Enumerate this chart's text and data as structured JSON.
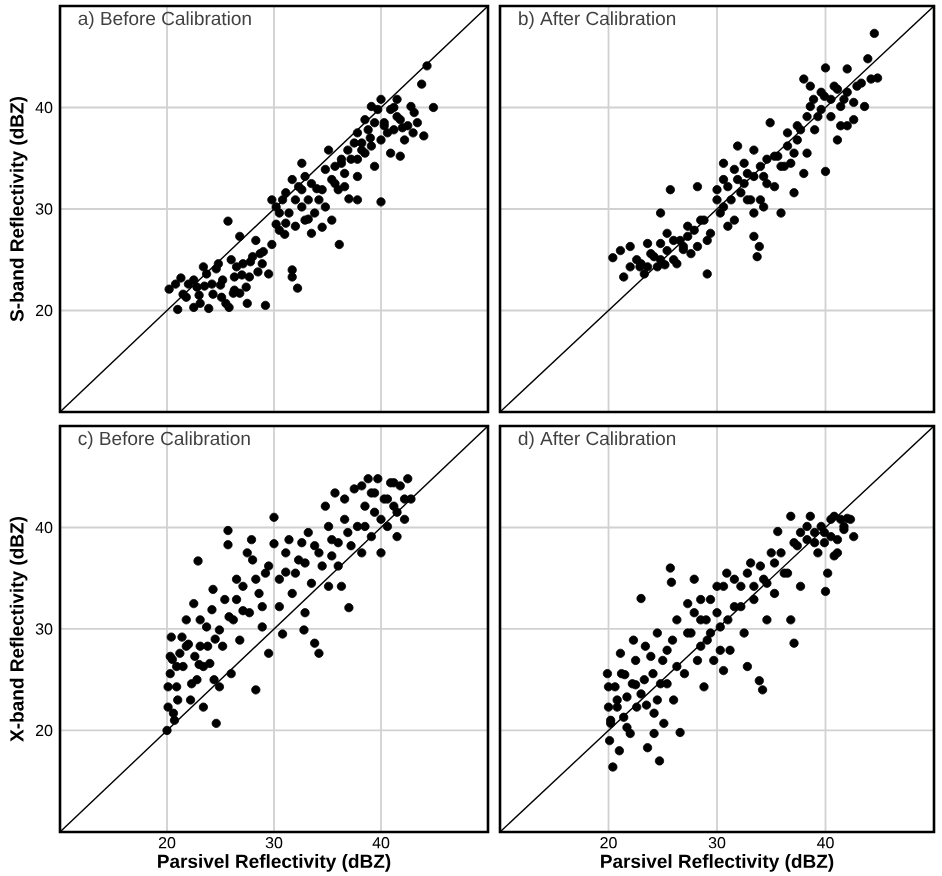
{
  "chart_data": [
    {
      "type": "scatter",
      "title": "a) Before Calibration",
      "ylabel": "S-band Reflectivity (dBZ)",
      "xlim": [
        10,
        50
      ],
      "ylim": [
        10,
        50
      ],
      "xticks": [
        20,
        30,
        40
      ],
      "yticks": [
        20,
        30,
        40
      ],
      "grid": true,
      "tick_labels": "y",
      "marker": "circle",
      "series": [
        {
          "color": "#000000",
          "x": [
            20.2,
            21.0,
            21.3,
            21.5,
            22.0,
            22.5,
            22.5,
            23.0,
            23.1,
            23.5,
            23.7,
            23.9,
            24.3,
            24.6,
            25.0,
            25.2,
            25.5,
            25.7,
            25.8,
            26.0,
            26.3,
            26.5,
            26.8,
            27.0,
            27.4,
            27.8,
            28.0,
            28.3,
            28.5,
            29.0,
            29.2,
            29.5,
            29.8,
            29.8,
            30.2,
            30.5,
            31.0,
            31.1,
            31.1,
            31.7,
            31.7,
            31.7,
            32.0,
            32.2,
            32.3,
            32.6,
            32.9,
            33.2,
            33.5,
            33.8,
            34.0,
            34.2,
            34.5,
            34.8,
            35.1,
            35.4,
            35.7,
            36.0,
            36.1,
            36.3,
            36.6,
            37.0,
            37.2,
            37.5,
            37.8,
            37.8,
            37.8,
            38.2,
            38.5,
            38.5,
            39.0,
            39.1,
            39.4,
            39.7,
            40.0,
            40.0,
            40.3,
            40.6,
            40.9,
            41.2,
            41.5,
            41.5,
            41.8,
            42.0,
            42.2,
            42.8,
            43.0,
            43.4,
            43.8,
            44.0,
            44.3,
            44.9,
            20.8,
            21.8,
            22.8,
            23.4,
            24.2,
            24.8,
            25.1,
            26.2,
            26.3,
            27.1,
            27.7,
            28.7,
            28.9,
            26.8,
            27.5,
            30.2,
            30.8,
            31.4,
            32.0,
            32.6,
            33.2,
            33.5,
            34.5,
            34.8,
            35.4,
            35.7,
            36.3,
            36.6,
            36.9,
            32.6,
            30.5,
            32.9,
            38.2,
            38.8,
            39.4,
            40.0,
            40.3,
            40.9,
            41.2,
            41.8,
            42.5,
            43.1,
            37.8,
            39.1
          ],
          "values": [
            22.1,
            20.1,
            23.2,
            21.6,
            22.6,
            20.3,
            23.0,
            21.5,
            20.7,
            22.4,
            23.6,
            20.2,
            21.6,
            24.1,
            22.5,
            23.0,
            20.7,
            28.8,
            20.3,
            25.0,
            22.0,
            24.3,
            27.3,
            23.5,
            22.3,
            24.8,
            25.3,
            26.9,
            23.8,
            25.8,
            20.5,
            23.6,
            26.5,
            30.9,
            28.5,
            29.6,
            27.5,
            31.6,
            28.6,
            32.9,
            24.0,
            23.3,
            28.3,
            22.2,
            32.2,
            30.2,
            33.2,
            29.0,
            27.6,
            29.6,
            32.0,
            30.9,
            28.2,
            33.9,
            35.8,
            28.9,
            32.5,
            31.9,
            26.5,
            34.5,
            33.5,
            31.0,
            34.9,
            36.5,
            30.9,
            33.2,
            37.5,
            35.8,
            38.8,
            35.5,
            37.0,
            36.2,
            34.2,
            39.8,
            40.8,
            30.7,
            38.2,
            37.5,
            35.5,
            40.0,
            39.1,
            40.8,
            35.2,
            38.0,
            36.8,
            40.1,
            37.5,
            38.5,
            42.3,
            37.2,
            44.1,
            40.0,
            22.6,
            21.3,
            22.3,
            24.3,
            22.6,
            24.6,
            21.3,
            21.7,
            23.3,
            24.6,
            23.3,
            25.6,
            24.6,
            21.7,
            20.7,
            30.2,
            30.9,
            29.6,
            30.9,
            31.9,
            30.9,
            32.5,
            31.9,
            30.2,
            32.9,
            34.2,
            34.9,
            32.2,
            35.8,
            34.5,
            27.9,
            28.9,
            36.5,
            37.8,
            38.5,
            36.8,
            38.5,
            39.8,
            37.8,
            38.8,
            38.2,
            39.5,
            34.9,
            40.1
          ]
        },
        {
          "type": "line",
          "color": "#000000",
          "marker": "none",
          "x": [
            10,
            50
          ],
          "values": [
            10,
            50
          ]
        }
      ]
    },
    {
      "type": "scatter",
      "title": "b) After Calibration",
      "xlim": [
        10,
        50
      ],
      "ylim": [
        10,
        50
      ],
      "xticks": [
        20,
        30,
        40
      ],
      "yticks": [
        20,
        30,
        40
      ],
      "grid": true,
      "tick_labels": false,
      "marker": "circle",
      "series": [
        {
          "color": "#000000",
          "x": [
            20.4,
            21.1,
            21.4,
            22.0,
            22.6,
            22.9,
            23.3,
            23.9,
            24.5,
            24.8,
            24.8,
            25.2,
            25.4,
            25.7,
            26.0,
            26.6,
            26.9,
            27.3,
            27.6,
            28.2,
            28.5,
            29.1,
            29.4,
            30.0,
            30.3,
            30.6,
            30.6,
            31.0,
            31.6,
            31.6,
            31.9,
            32.2,
            32.5,
            32.8,
            33.1,
            33.4,
            33.4,
            33.7,
            33.9,
            34.0,
            34.3,
            34.6,
            34.9,
            35.3,
            35.6,
            35.9,
            36.2,
            36.5,
            36.8,
            37.1,
            37.4,
            37.7,
            38.0,
            38.3,
            38.0,
            38.6,
            39.0,
            39.3,
            39.6,
            40.0,
            40.0,
            40.5,
            40.8,
            41.1,
            41.4,
            41.7,
            42.0,
            42.6,
            42.9,
            43.6,
            43.9,
            44.2,
            44.5,
            44.8,
            23.0,
            23.6,
            24.2,
            24.8,
            25.4,
            26.0,
            26.3,
            26.9,
            27.3,
            27.9,
            28.2,
            28.8,
            29.1,
            23.6,
            22.0,
            30.0,
            30.6,
            31.3,
            31.9,
            32.5,
            32.8,
            33.4,
            34.0,
            34.6,
            35.3,
            35.9,
            36.5,
            37.1,
            37.4,
            33.4,
            34.3,
            31.0,
            38.3,
            38.9,
            39.6,
            39.9,
            40.5,
            41.1,
            41.4,
            42.0,
            42.6,
            43.3,
            42.0,
            38.6
          ],
          "values": [
            25.2,
            25.9,
            23.3,
            26.3,
            25.0,
            24.3,
            23.6,
            25.6,
            24.3,
            26.6,
            29.6,
            24.5,
            27.6,
            31.9,
            25.0,
            26.9,
            26.0,
            28.3,
            25.6,
            32.2,
            28.9,
            23.6,
            27.6,
            30.9,
            29.6,
            34.5,
            30.2,
            32.2,
            28.9,
            33.9,
            36.2,
            31.6,
            32.5,
            33.5,
            30.9,
            27.3,
            35.8,
            25.3,
            26.3,
            30.9,
            33.2,
            34.9,
            38.5,
            32.2,
            35.2,
            29.6,
            34.2,
            36.2,
            34.5,
            31.6,
            36.8,
            37.8,
            33.5,
            35.5,
            42.8,
            40.1,
            37.8,
            39.1,
            41.5,
            43.9,
            33.7,
            39.1,
            42.1,
            36.8,
            38.2,
            40.8,
            43.8,
            38.8,
            42.1,
            40.1,
            44.8,
            42.8,
            47.3,
            42.9,
            24.6,
            24.3,
            25.3,
            25.0,
            25.9,
            26.9,
            24.6,
            26.3,
            27.3,
            27.9,
            26.3,
            28.9,
            26.9,
            26.6,
            24.3,
            31.9,
            32.9,
            30.9,
            32.9,
            34.5,
            30.9,
            33.2,
            34.2,
            32.5,
            35.2,
            34.2,
            37.5,
            35.5,
            38.2,
            29.6,
            30.2,
            28.3,
            39.1,
            40.8,
            39.8,
            41.1,
            40.8,
            41.8,
            40.1,
            41.5,
            40.5,
            42.4,
            38.2,
            42.1
          ]
        },
        {
          "type": "line",
          "color": "#000000",
          "marker": "none",
          "x": [
            10,
            50
          ],
          "values": [
            10,
            50
          ]
        }
      ]
    },
    {
      "type": "scatter",
      "title": "c) Before Calibration",
      "xlabel": "Parsivel Reflectivity (dBZ)",
      "ylabel": "X-band Reflectivity (dBZ)",
      "xlim": [
        10,
        50
      ],
      "ylim": [
        10,
        50
      ],
      "xticks": [
        20,
        30,
        40
      ],
      "yticks": [
        20,
        30,
        40
      ],
      "grid": true,
      "marker": "circle",
      "series": [
        {
          "color": "#000000",
          "x": [
            20.0,
            20.1,
            20.3,
            20.4,
            20.5,
            20.7,
            20.9,
            21.0,
            21.2,
            21.5,
            21.8,
            22.0,
            22.2,
            22.5,
            22.8,
            22.9,
            23.0,
            23.1,
            23.4,
            23.7,
            24.0,
            24.3,
            24.5,
            24.6,
            24.9,
            25.2,
            25.7,
            25.7,
            25.8,
            26.0,
            26.5,
            26.8,
            27.1,
            27.5,
            27.9,
            28.0,
            28.3,
            28.6,
            28.9,
            29.2,
            29.5,
            30.0,
            30.0,
            30.5,
            30.8,
            31.1,
            31.4,
            31.7,
            32.3,
            32.8,
            32.9,
            33.2,
            33.5,
            33.8,
            34.2,
            34.2,
            34.8,
            35.1,
            35.4,
            35.7,
            36.0,
            36.3,
            36.6,
            37.0,
            37.2,
            37.5,
            37.8,
            38.2,
            38.2,
            38.5,
            38.8,
            39.1,
            39.1,
            39.4,
            39.7,
            40.0,
            40.3,
            40.6,
            40.9,
            41.2,
            41.5,
            41.8,
            42.2,
            42.5,
            42.8,
            20.1,
            20.3,
            20.6,
            20.9,
            21.4,
            21.8,
            22.3,
            22.6,
            23.1,
            23.4,
            23.8,
            24.2,
            24.4,
            24.9,
            25.4,
            26.2,
            26.5,
            27.1,
            27.7,
            28.3,
            28.9,
            29.5,
            30.5,
            31.1,
            32.0,
            32.6,
            32.9,
            33.8,
            34.5,
            35.1,
            35.4,
            36.0,
            36.6,
            36.9,
            38.5,
            39.4,
            40.0,
            40.6,
            41.2,
            41.5,
            42.2
          ],
          "values": [
            20.0,
            22.3,
            25.6,
            29.2,
            27.0,
            21.0,
            24.3,
            23.0,
            27.6,
            26.3,
            30.9,
            28.5,
            23.0,
            32.5,
            25.0,
            36.7,
            26.5,
            28.3,
            22.3,
            30.2,
            26.6,
            33.9,
            29.0,
            20.7,
            24.3,
            28.3,
            39.7,
            38.3,
            31.2,
            25.6,
            34.9,
            28.9,
            31.8,
            37.5,
            38.8,
            36.8,
            24.0,
            33.5,
            30.2,
            35.5,
            27.6,
            41.0,
            38.4,
            32.2,
            29.5,
            35.6,
            38.8,
            33.5,
            36.8,
            29.9,
            31.6,
            39.5,
            34.5,
            28.6,
            27.6,
            37.5,
            42.1,
            34.2,
            38.8,
            43.4,
            36.2,
            34.2,
            40.8,
            32.1,
            38.2,
            43.8,
            40.1,
            37.5,
            44.1,
            42.1,
            44.8,
            39.1,
            43.4,
            41.5,
            44.8,
            37.5,
            42.8,
            40.1,
            44.4,
            42.1,
            39.1,
            44.1,
            40.8,
            44.8,
            42.8,
            24.3,
            27.3,
            21.7,
            26.3,
            29.2,
            28.3,
            24.6,
            27.3,
            30.9,
            26.3,
            28.3,
            31.9,
            25.0,
            29.9,
            32.9,
            30.9,
            32.9,
            34.2,
            31.6,
            34.9,
            32.2,
            36.2,
            34.9,
            37.5,
            35.5,
            38.5,
            36.5,
            38.2,
            36.2,
            40.1,
            37.2,
            38.5,
            42.8,
            39.5,
            40.1,
            43.4,
            40.8,
            42.8,
            44.4,
            41.5,
            42.8
          ]
        },
        {
          "type": "line",
          "color": "#000000",
          "marker": "none",
          "x": [
            10,
            50
          ],
          "values": [
            10,
            50
          ]
        }
      ]
    },
    {
      "type": "scatter",
      "title": "d) After Calibration",
      "xlabel": "Parsivel Reflectivity (dBZ)",
      "xlim": [
        10,
        50
      ],
      "ylim": [
        10,
        50
      ],
      "xticks": [
        20,
        30,
        40
      ],
      "yticks": [
        20,
        30,
        40
      ],
      "grid": true,
      "tick_labels": "x",
      "marker": "circle",
      "series": [
        {
          "color": "#000000",
          "x": [
            19.9,
            20.0,
            20.1,
            20.2,
            20.4,
            20.6,
            20.8,
            21.0,
            21.1,
            21.4,
            21.5,
            21.7,
            22.0,
            22.3,
            22.5,
            22.6,
            23.0,
            23.3,
            23.5,
            23.6,
            23.9,
            24.2,
            24.5,
            24.7,
            24.8,
            25.1,
            25.4,
            25.7,
            25.8,
            26.0,
            26.3,
            26.6,
            27.0,
            27.3,
            27.6,
            27.9,
            28.2,
            28.5,
            28.8,
            29.1,
            29.4,
            29.7,
            30.0,
            30.3,
            30.6,
            30.9,
            31.2,
            31.6,
            32.2,
            32.5,
            32.8,
            33.1,
            33.4,
            33.9,
            34.2,
            34.3,
            34.6,
            35.0,
            35.3,
            35.6,
            36.2,
            36.8,
            37.1,
            37.4,
            37.7,
            36.8,
            38.3,
            38.6,
            39.0,
            39.3,
            39.6,
            39.9,
            40.0,
            40.2,
            40.5,
            40.8,
            41.1,
            41.4,
            41.7,
            42.0,
            42.6,
            20.0,
            20.2,
            20.8,
            21.2,
            21.7,
            22.2,
            22.5,
            23.0,
            23.4,
            24.1,
            24.5,
            25.0,
            25.4,
            25.9,
            26.3,
            24.2,
            27.3,
            27.9,
            28.5,
            29.0,
            29.4,
            30.0,
            30.6,
            31.0,
            31.6,
            32.2,
            32.8,
            33.4,
            34.0,
            34.6,
            35.3,
            35.9,
            36.5,
            37.1,
            28.5,
            30.3,
            37.7,
            38.3,
            39.0,
            39.9,
            40.5,
            41.1,
            41.7,
            42.3,
            40.8
          ],
          "values": [
            25.6,
            22.3,
            19.0,
            21.0,
            16.4,
            24.3,
            23.0,
            18.0,
            27.6,
            21.3,
            25.5,
            23.3,
            19.7,
            28.9,
            24.5,
            22.3,
            33.0,
            25.0,
            22.5,
            18.3,
            27.3,
            21.7,
            29.6,
            17.0,
            24.6,
            20.7,
            27.9,
            36.0,
            34.6,
            23.0,
            30.9,
            19.8,
            25.6,
            32.5,
            29.6,
            34.9,
            26.9,
            30.9,
            24.3,
            28.9,
            32.9,
            26.9,
            34.2,
            30.2,
            25.9,
            35.5,
            27.9,
            32.2,
            34.2,
            29.6,
            26.3,
            36.5,
            32.9,
            24.9,
            24.0,
            34.9,
            30.9,
            37.5,
            33.5,
            39.6,
            35.5,
            30.9,
            28.6,
            38.2,
            34.2,
            41.1,
            38.8,
            41.1,
            39.5,
            37.5,
            40.1,
            38.5,
            33.7,
            35.5,
            39.1,
            41.1,
            37.5,
            40.8,
            39.8,
            40.9,
            39.1,
            24.3,
            20.7,
            22.3,
            25.6,
            20.3,
            24.6,
            26.9,
            23.6,
            28.3,
            25.6,
            23.0,
            26.9,
            24.6,
            28.9,
            26.3,
            19.7,
            29.6,
            31.6,
            28.3,
            30.9,
            29.6,
            31.6,
            34.2,
            30.9,
            34.9,
            32.2,
            35.5,
            34.2,
            36.2,
            34.5,
            36.5,
            37.5,
            35.5,
            38.5,
            32.9,
            27.9,
            39.5,
            40.1,
            38.5,
            39.5,
            40.8,
            38.8,
            40.1,
            40.8,
            37.2
          ]
        },
        {
          "type": "line",
          "color": "#000000",
          "marker": "none",
          "x": [
            10,
            50
          ],
          "values": [
            10,
            50
          ]
        }
      ]
    }
  ]
}
